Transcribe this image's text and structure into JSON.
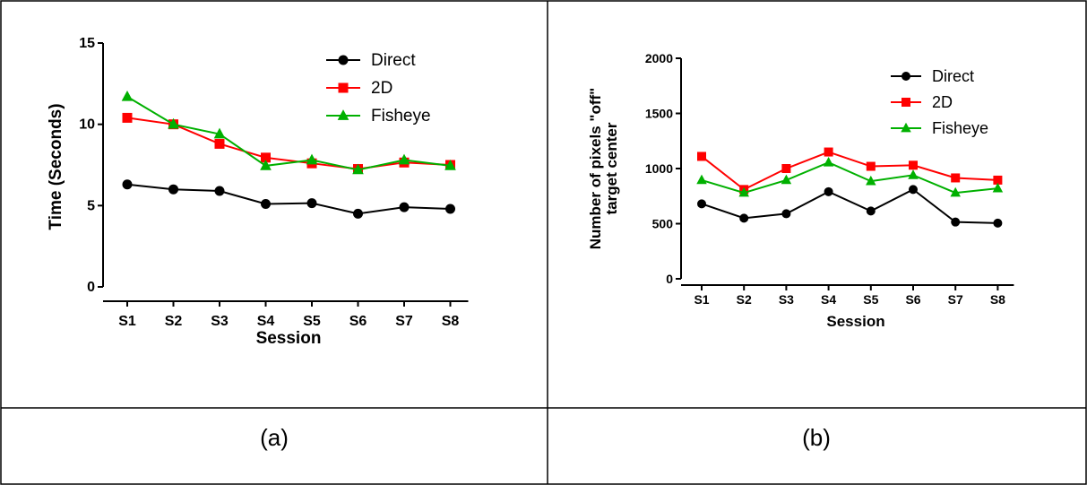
{
  "captions": {
    "left": "(a)",
    "right": "(b)"
  },
  "colors": {
    "Direct": "#000000",
    "2D": "#ff0000",
    "Fisheye": "#00b000"
  },
  "chart_data": [
    {
      "type": "line",
      "title": "",
      "xlabel": "Session",
      "ylabel": "Time (Seconds)",
      "categories": [
        "S1",
        "S2",
        "S3",
        "S4",
        "S5",
        "S6",
        "S7",
        "S8"
      ],
      "ylim": [
        0,
        15
      ],
      "yticks": [
        0,
        5,
        10,
        15
      ],
      "legend_position": "top-right",
      "series": [
        {
          "name": "Direct",
          "marker": "circle",
          "values": [
            6.3,
            6.0,
            5.9,
            5.1,
            5.15,
            4.5,
            4.9,
            4.8
          ]
        },
        {
          "name": "2D",
          "marker": "square",
          "values": [
            10.4,
            10.0,
            8.8,
            7.95,
            7.6,
            7.25,
            7.65,
            7.5
          ]
        },
        {
          "name": "Fisheye",
          "marker": "triangle",
          "values": [
            11.7,
            10.0,
            9.4,
            7.45,
            7.8,
            7.2,
            7.8,
            7.45
          ]
        }
      ]
    },
    {
      "type": "line",
      "title": "",
      "xlabel": "Session",
      "ylabel_lines": [
        "Number of pixels \"off\"",
        "target center"
      ],
      "categories": [
        "S1",
        "S2",
        "S3",
        "S4",
        "S5",
        "S6",
        "S7",
        "S8"
      ],
      "ylim": [
        0,
        2000
      ],
      "yticks": [
        0,
        500,
        1000,
        1500,
        2000
      ],
      "legend_position": "top-right",
      "series": [
        {
          "name": "Direct",
          "marker": "circle",
          "values": [
            680,
            550,
            590,
            790,
            615,
            810,
            515,
            505
          ]
        },
        {
          "name": "2D",
          "marker": "square",
          "values": [
            1110,
            810,
            1000,
            1150,
            1020,
            1030,
            915,
            895
          ]
        },
        {
          "name": "Fisheye",
          "marker": "triangle",
          "values": [
            895,
            780,
            895,
            1055,
            885,
            940,
            780,
            820
          ]
        }
      ]
    }
  ]
}
